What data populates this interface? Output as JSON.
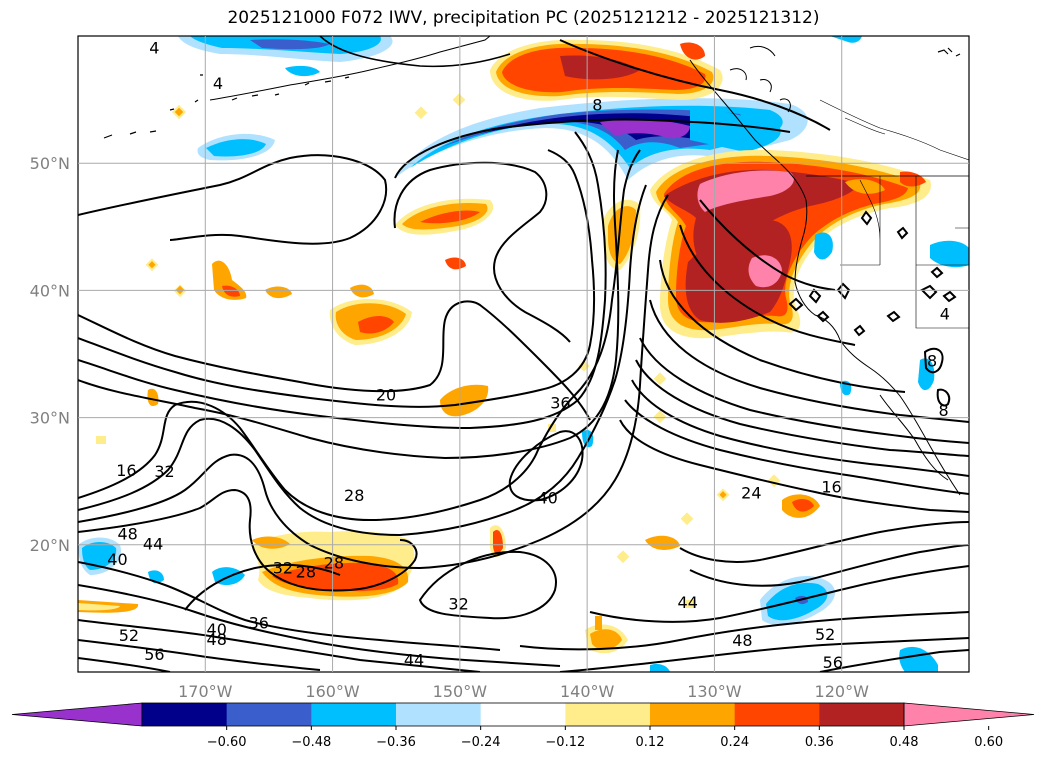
{
  "title": "2025121000 F072 IWV, precipitation PC (2025121212 - 2025121312)",
  "map": {
    "lon_range": [
      -180,
      -110
    ],
    "lat_range": [
      10,
      60
    ],
    "lon_ticks": [
      {
        "lon": -170,
        "label": "170°W"
      },
      {
        "lon": -160,
        "label": "160°W"
      },
      {
        "lon": -150,
        "label": "150°W"
      },
      {
        "lon": -140,
        "label": "140°W"
      },
      {
        "lon": -130,
        "label": "130°W"
      },
      {
        "lon": -120,
        "label": "120°W"
      }
    ],
    "lat_ticks": [
      {
        "lat": 50,
        "label": "50°N"
      },
      {
        "lat": 40,
        "label": "40°N"
      },
      {
        "lat": 30,
        "label": "30°N"
      },
      {
        "lat": 20,
        "label": "20°N"
      }
    ],
    "gridlines": true
  },
  "contour_labels": [
    {
      "text": "4",
      "lon": -174,
      "lat": 59.1
    },
    {
      "text": "4",
      "lon": -169,
      "lat": 56.3
    },
    {
      "text": "8",
      "lon": -139.2,
      "lat": 54.6
    },
    {
      "text": "20",
      "lon": -155.8,
      "lat": 31.8
    },
    {
      "text": "36",
      "lon": -142.1,
      "lat": 31.2
    },
    {
      "text": "40",
      "lon": -143.1,
      "lat": 23.7
    },
    {
      "text": "28",
      "lon": -158.3,
      "lat": 23.9
    },
    {
      "text": "24",
      "lon": -127.1,
      "lat": 24.1
    },
    {
      "text": "16",
      "lon": -120.8,
      "lat": 24.6
    },
    {
      "text": "16",
      "lon": -176.2,
      "lat": 25.9
    },
    {
      "text": "32",
      "lon": -173.2,
      "lat": 25.8
    },
    {
      "text": "48",
      "lon": -176.1,
      "lat": 20.9
    },
    {
      "text": "44",
      "lon": -174.1,
      "lat": 20.1
    },
    {
      "text": "40",
      "lon": -176.9,
      "lat": 18.9
    },
    {
      "text": "32",
      "lon": -163.9,
      "lat": 18.2
    },
    {
      "text": "28",
      "lon": -162.1,
      "lat": 17.9
    },
    {
      "text": "28",
      "lon": -159.9,
      "lat": 18.6
    },
    {
      "text": "32",
      "lon": -150.1,
      "lat": 15.4
    },
    {
      "text": "44",
      "lon": -132.1,
      "lat": 15.5
    },
    {
      "text": "36",
      "lon": -165.8,
      "lat": 13.9
    },
    {
      "text": "40",
      "lon": -169.1,
      "lat": 13.4
    },
    {
      "text": "48",
      "lon": -169.1,
      "lat": 12.6
    },
    {
      "text": "52",
      "lon": -176,
      "lat": 12.9
    },
    {
      "text": "56",
      "lon": -174,
      "lat": 11.4
    },
    {
      "text": "44",
      "lon": -153.6,
      "lat": 11.0
    },
    {
      "text": "48",
      "lon": -127.8,
      "lat": 12.5
    },
    {
      "text": "52",
      "lon": -121.3,
      "lat": 13.0
    },
    {
      "text": "56",
      "lon": -120.7,
      "lat": 10.8
    },
    {
      "text": "4",
      "lon": -111.9,
      "lat": 38.2
    },
    {
      "text": "8",
      "lon": -112.9,
      "lat": 34.5
    },
    {
      "text": "8",
      "lon": -112.0,
      "lat": 30.6
    }
  ],
  "colorbar": {
    "colors": [
      "#9932cc",
      "#00008b",
      "#3a5fcd",
      "#00bfff",
      "#b0e2ff",
      "#ffffff",
      "#ffec8b",
      "#ffa500",
      "#ff4500",
      "#b22222",
      "#ff82ab"
    ],
    "tick_values": [
      "−0.60",
      "−0.48",
      "−0.36",
      "−0.24",
      "−0.12",
      "0.12",
      "0.24",
      "0.36",
      "0.48",
      "0.60"
    ],
    "extend": "both"
  }
}
